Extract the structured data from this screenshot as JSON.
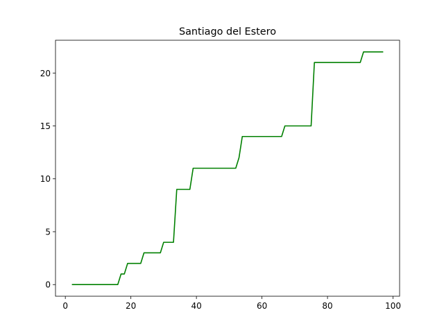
{
  "chart_data": {
    "type": "line",
    "title": "Santiago del Estero",
    "xlabel": "",
    "ylabel": "",
    "xlim": [
      -3,
      102
    ],
    "ylim": [
      -1.1,
      23.1
    ],
    "grid": false,
    "xticks": [
      0,
      20,
      40,
      60,
      80,
      100
    ],
    "yticks": [
      0,
      5,
      10,
      15,
      20
    ],
    "series": [
      {
        "color": "#008000",
        "x": [
          2,
          16,
          17,
          18,
          19,
          23,
          24,
          29,
          30,
          33,
          34,
          38,
          39,
          52,
          53,
          54,
          66,
          67,
          75,
          76,
          90,
          91,
          97
        ],
        "y": [
          0,
          0,
          1,
          1,
          2,
          2,
          3,
          3,
          4,
          4,
          9,
          9,
          11,
          11,
          12,
          14,
          14,
          15,
          15,
          21,
          21,
          22,
          22
        ]
      }
    ]
  }
}
